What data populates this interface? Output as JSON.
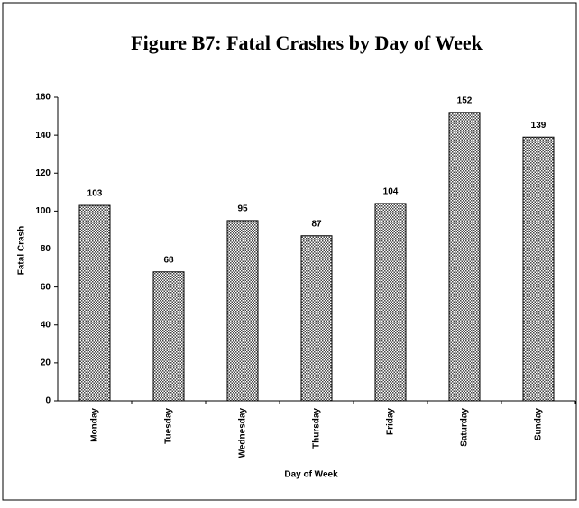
{
  "chart_data": {
    "type": "bar",
    "title": "Figure B7: Fatal Crashes by Day of Week",
    "x_label": "Day of Week",
    "y_label": "Fatal Crash",
    "categories": [
      "Monday",
      "Tuesday",
      "Wednesday",
      "Thursday",
      "Friday",
      "Saturday",
      "Sunday"
    ],
    "values": [
      103,
      68,
      95,
      87,
      104,
      152,
      139
    ],
    "color": "#555555",
    "ylim": [
      0,
      160
    ],
    "yticks": [
      0,
      20,
      40,
      60,
      80,
      100,
      120,
      140,
      160
    ],
    "grid": false
  }
}
